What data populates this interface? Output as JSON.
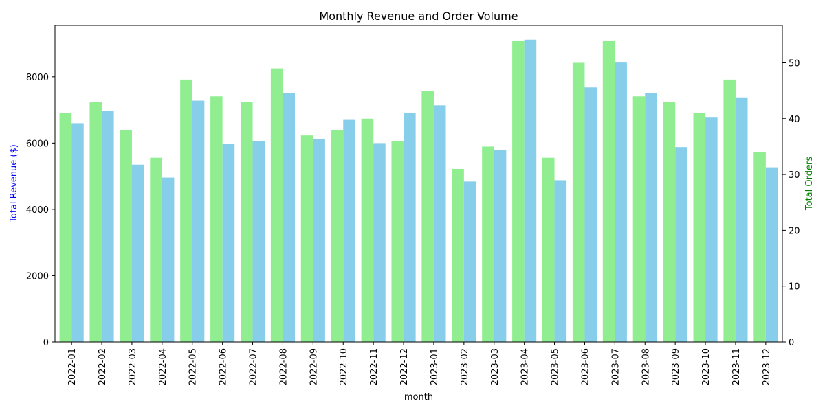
{
  "chart_data": {
    "type": "bar",
    "title": "Monthly Revenue and Order Volume",
    "xlabel": "month",
    "ylabel": "Total Revenue ($)",
    "y2label": "Total Orders",
    "ylim": [
      0,
      9550
    ],
    "y2lim": [
      0,
      56.7
    ],
    "yticks": [
      0,
      2000,
      4000,
      6000,
      8000
    ],
    "y2ticks": [
      0,
      10,
      20,
      30,
      40,
      50
    ],
    "colors": {
      "revenue": "#87CEEB",
      "orders": "#90EE90",
      "ylabel": "#0000ff",
      "y2label": "#008000"
    },
    "categories": [
      "2022-01",
      "2022-02",
      "2022-03",
      "2022-04",
      "2022-05",
      "2022-06",
      "2022-07",
      "2022-08",
      "2022-09",
      "2022-10",
      "2022-11",
      "2022-12",
      "2023-01",
      "2023-02",
      "2023-03",
      "2023-04",
      "2023-05",
      "2023-06",
      "2023-07",
      "2023-08",
      "2023-09",
      "2023-10",
      "2023-11",
      "2023-12"
    ],
    "series": [
      {
        "key": "orders",
        "axis": "right",
        "values": [
          41,
          43,
          38,
          33,
          47,
          44,
          43,
          49,
          37,
          38,
          40,
          36,
          45,
          31,
          35,
          54,
          33,
          50,
          54,
          44,
          43,
          41,
          47,
          34
        ]
      },
      {
        "key": "revenue",
        "axis": "left",
        "values": [
          6600,
          6980,
          5350,
          4960,
          7280,
          5980,
          6060,
          7500,
          6120,
          6700,
          6000,
          6920,
          7140,
          4840,
          5800,
          9120,
          4880,
          7680,
          8430,
          7500,
          5880,
          6770,
          7380,
          5270
        ]
      }
    ]
  }
}
